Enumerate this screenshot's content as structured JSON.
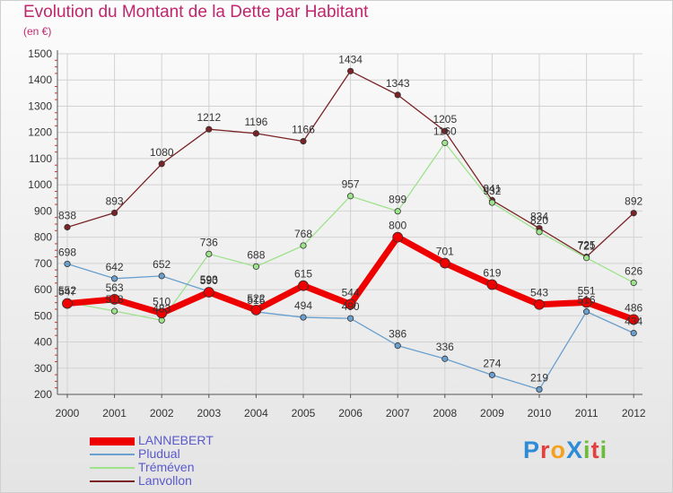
{
  "header": {
    "title": "Evolution du Montant de la Dette par Habitant",
    "unit": "(en €)"
  },
  "brand": {
    "name": "ProXiti",
    "letters": [
      {
        "ch": "P",
        "color": "#2e8bd6"
      },
      {
        "ch": "r",
        "color": "#e33f3f"
      },
      {
        "ch": "o",
        "color": "#f2a21f"
      },
      {
        "ch": "X",
        "color": "#2e8bd6"
      },
      {
        "ch": "i",
        "color": "#6cbc3a"
      },
      {
        "ch": "t",
        "color": "#e33f3f"
      },
      {
        "ch": "i",
        "color": "#6cbc3a"
      }
    ]
  },
  "chart_data": {
    "type": "line",
    "title": "Evolution du Montant de la Dette par Habitant",
    "ylabel": "(en €)",
    "xlabel": "",
    "categories": [
      "2000",
      "2001",
      "2002",
      "2003",
      "2004",
      "2005",
      "2006",
      "2007",
      "2008",
      "2009",
      "2010",
      "2011",
      "2012"
    ],
    "ylim": [
      200,
      1500
    ],
    "yticks": [
      200,
      300,
      400,
      500,
      600,
      700,
      800,
      900,
      1000,
      1100,
      1200,
      1300,
      1400,
      1500
    ],
    "grid": true,
    "legend_position": "bottom-left",
    "series": [
      {
        "name": "Lanvollon",
        "color": "#7a2326",
        "width": 1.3,
        "marker": 3.2,
        "values": [
          838,
          893,
          1080,
          1212,
          1196,
          1166,
          1434,
          1343,
          1205,
          941,
          834,
          725,
          892
        ]
      },
      {
        "name": "Tréméven",
        "color": "#9ee28c",
        "width": 1.3,
        "marker": 3.2,
        "values": [
          552,
          518,
          483,
          736,
          688,
          768,
          957,
          899,
          1160,
          932,
          820,
          721,
          626
        ]
      },
      {
        "name": "Pludual",
        "color": "#6a9fce",
        "width": 1.3,
        "marker": 3.2,
        "values": [
          698,
          642,
          652,
          593,
          515,
          494,
          490,
          386,
          336,
          274,
          219,
          516,
          434
        ]
      },
      {
        "name": "LANNEBERT",
        "color": "#ee0000",
        "width": 7,
        "marker": 5.5,
        "values": [
          547,
          563,
          510,
          590,
          522,
          615,
          544,
          800,
          701,
          619,
          543,
          551,
          486
        ]
      }
    ]
  }
}
